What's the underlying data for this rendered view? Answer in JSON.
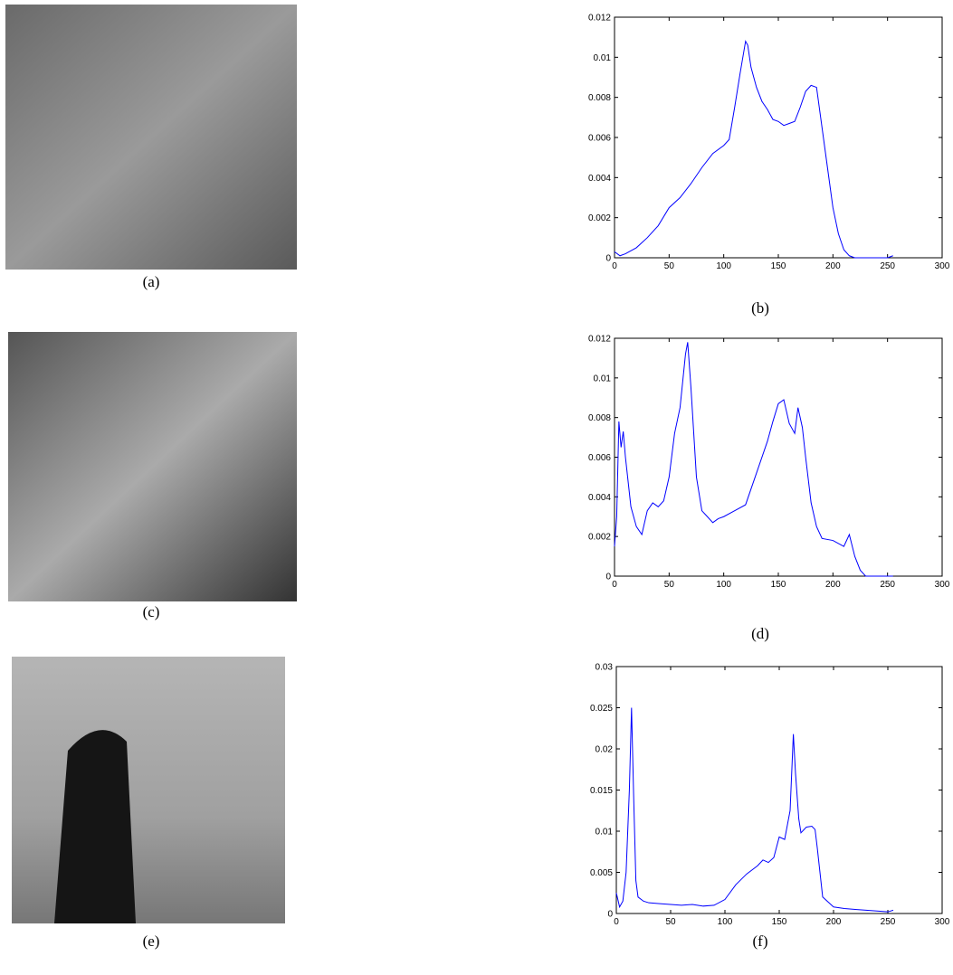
{
  "captions": [
    "(a)",
    "(b)",
    "(c)",
    "(d)",
    "(e)",
    "(f)"
  ],
  "chart_data": [
    {
      "type": "line",
      "color": "#0000ff",
      "xlim": [
        0,
        300
      ],
      "xticks": [
        0,
        50,
        100,
        150,
        200,
        250,
        300
      ],
      "ylim": [
        0,
        0.012
      ],
      "yticks": [
        0,
        0.002,
        0.004,
        0.006,
        0.008,
        0.01,
        0.012
      ],
      "x": [
        0,
        5,
        10,
        20,
        30,
        40,
        50,
        60,
        70,
        80,
        90,
        100,
        105,
        110,
        115,
        120,
        122,
        125,
        130,
        135,
        140,
        145,
        150,
        155,
        160,
        165,
        170,
        175,
        180,
        185,
        190,
        195,
        200,
        205,
        210,
        215,
        220,
        230,
        240,
        250,
        255
      ],
      "values": [
        0.0003,
        0.0001,
        0.0002,
        0.0005,
        0.001,
        0.0016,
        0.0025,
        0.003,
        0.0037,
        0.0045,
        0.0052,
        0.0056,
        0.0059,
        0.0075,
        0.0092,
        0.0108,
        0.0106,
        0.0095,
        0.0085,
        0.0078,
        0.0074,
        0.0069,
        0.0068,
        0.0066,
        0.0067,
        0.0068,
        0.0075,
        0.0083,
        0.0086,
        0.0085,
        0.0065,
        0.0045,
        0.0025,
        0.0012,
        0.0004,
        0.0001,
        0,
        0,
        0,
        0,
        0.0001
      ]
    },
    {
      "type": "line",
      "color": "#0000ff",
      "xlim": [
        0,
        300
      ],
      "xticks": [
        0,
        50,
        100,
        150,
        200,
        250,
        300
      ],
      "ylim": [
        0,
        0.012
      ],
      "yticks": [
        0,
        0.002,
        0.004,
        0.006,
        0.008,
        0.01,
        0.012
      ],
      "x": [
        0,
        2,
        4,
        6,
        8,
        10,
        15,
        20,
        25,
        30,
        35,
        40,
        45,
        50,
        55,
        60,
        65,
        67,
        70,
        75,
        80,
        85,
        90,
        95,
        100,
        110,
        120,
        130,
        140,
        145,
        150,
        155,
        160,
        165,
        168,
        172,
        175,
        180,
        185,
        190,
        200,
        210,
        215,
        220,
        225,
        230,
        240,
        250,
        255
      ],
      "values": [
        0.0015,
        0.003,
        0.0078,
        0.0065,
        0.0073,
        0.006,
        0.0035,
        0.0025,
        0.0021,
        0.0033,
        0.0037,
        0.0035,
        0.0038,
        0.005,
        0.0072,
        0.0085,
        0.0112,
        0.0118,
        0.0095,
        0.005,
        0.0033,
        0.003,
        0.0027,
        0.0029,
        0.003,
        0.0033,
        0.0036,
        0.0052,
        0.0068,
        0.0078,
        0.0087,
        0.0089,
        0.0077,
        0.0072,
        0.0085,
        0.0075,
        0.006,
        0.0037,
        0.0025,
        0.0019,
        0.0018,
        0.0015,
        0.0021,
        0.001,
        0.0003,
        0,
        0,
        0,
        0
      ]
    },
    {
      "type": "line",
      "color": "#0000ff",
      "xlim": [
        0,
        300
      ],
      "xticks": [
        0,
        50,
        100,
        150,
        200,
        250,
        300
      ],
      "ylim": [
        0,
        0.03
      ],
      "yticks": [
        0,
        0.005,
        0.01,
        0.015,
        0.02,
        0.025,
        0.03
      ],
      "x": [
        0,
        3,
        6,
        9,
        12,
        14,
        16,
        18,
        20,
        25,
        30,
        40,
        50,
        60,
        70,
        80,
        90,
        100,
        110,
        120,
        130,
        135,
        140,
        145,
        150,
        155,
        160,
        163,
        165,
        168,
        170,
        175,
        180,
        183,
        185,
        190,
        200,
        210,
        220,
        230,
        240,
        250,
        255
      ],
      "values": [
        0.0025,
        0.0008,
        0.0015,
        0.005,
        0.015,
        0.025,
        0.014,
        0.004,
        0.002,
        0.0015,
        0.0013,
        0.0012,
        0.0011,
        0.001,
        0.0011,
        0.0009,
        0.001,
        0.0017,
        0.0035,
        0.0048,
        0.0058,
        0.0065,
        0.0062,
        0.0068,
        0.0093,
        0.009,
        0.0125,
        0.0218,
        0.017,
        0.0115,
        0.0098,
        0.0105,
        0.0106,
        0.0102,
        0.008,
        0.002,
        0.0008,
        0.0006,
        0.0005,
        0.0004,
        0.0003,
        0.0002,
        0.0004
      ]
    }
  ]
}
